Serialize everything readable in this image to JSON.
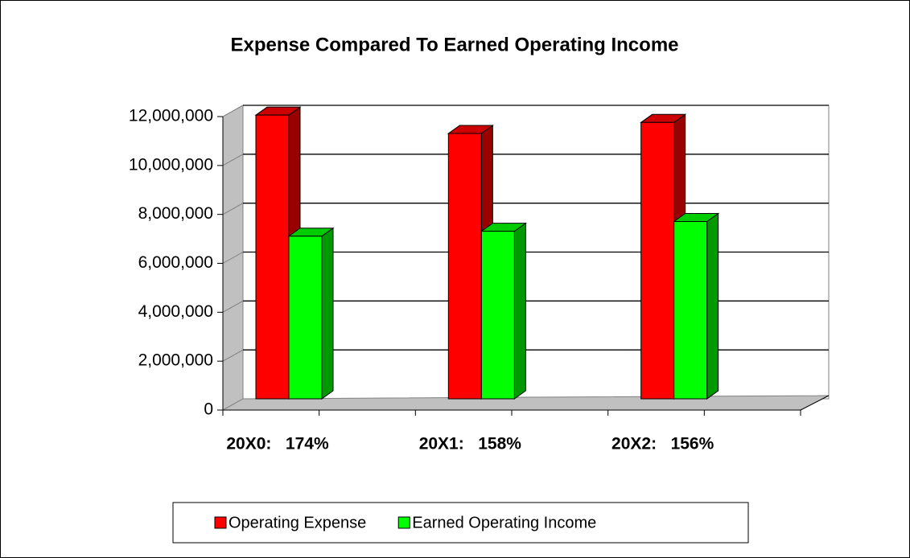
{
  "chart_data": {
    "type": "bar3d",
    "title": "Expense Compared To Earned Operating Income",
    "categories": [
      "20X0:   174%",
      "20X1:   158%",
      "20X2:   156%"
    ],
    "series": [
      {
        "name": "Operating Expense",
        "color": "#ff0000",
        "values": [
          11600000,
          10850000,
          11300000
        ]
      },
      {
        "name": "Earned Operating Income",
        "color": "#00ff00",
        "values": [
          6650000,
          6850000,
          7250000
        ]
      }
    ],
    "ylim": [
      0,
      12000000
    ],
    "yticks": [
      0,
      {
        "value": 2000000,
        "label": "2,000,000"
      },
      {
        "value": 4000000,
        "label": "4,000,000"
      },
      {
        "value": 6000000,
        "label": "6,000,000"
      },
      {
        "value": 8000000,
        "label": "8,000,000"
      },
      {
        "value": 10000000,
        "label": "10,000,000"
      },
      {
        "value": 12000000,
        "label": "12,000,000"
      }
    ],
    "grid": true,
    "legend": "bottom"
  }
}
